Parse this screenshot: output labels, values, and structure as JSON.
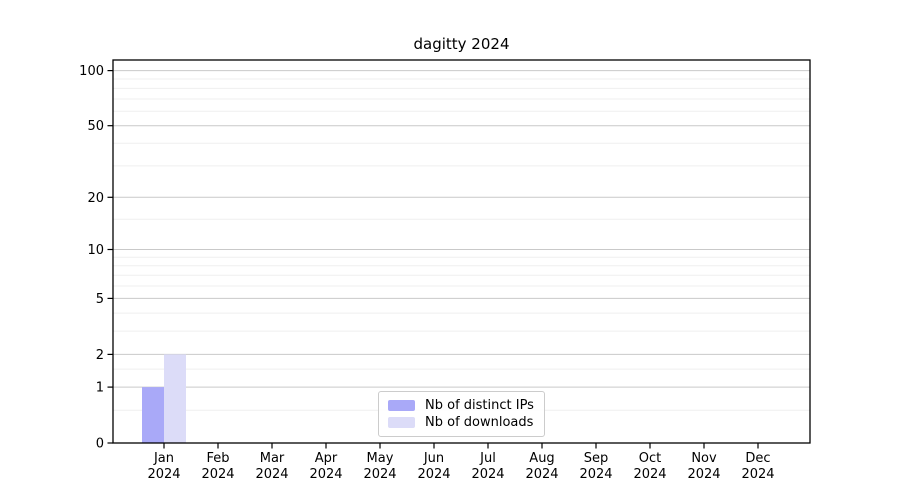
{
  "chart_data": {
    "type": "bar",
    "title": "dagitty 2024",
    "categories": [
      "Jan",
      "Feb",
      "Mar",
      "Apr",
      "May",
      "Jun",
      "Jul",
      "Aug",
      "Sep",
      "Oct",
      "Nov",
      "Dec"
    ],
    "x_year": "2024",
    "series": [
      {
        "name": "Nb of distinct IPs",
        "color": "#a9a9f8",
        "values": [
          1,
          0,
          0,
          0,
          0,
          0,
          0,
          0,
          0,
          0,
          0,
          0
        ]
      },
      {
        "name": "Nb of downloads",
        "color": "#dcdcf8",
        "values": [
          2,
          0,
          0,
          0,
          0,
          0,
          0,
          0,
          0,
          0,
          0,
          0
        ]
      }
    ],
    "yticks": [
      0,
      1,
      2,
      5,
      10,
      20,
      50,
      100
    ],
    "ylim": [
      0,
      100
    ],
    "yscale": "log(1+x)",
    "grid": true,
    "legend_position": "inside-bottom-center",
    "colors": {
      "axis": "#000000",
      "grid_major": "#c9c9c9",
      "grid_minor": "#efefef",
      "legend_border": "#cccccc",
      "background": "#ffffff"
    }
  }
}
